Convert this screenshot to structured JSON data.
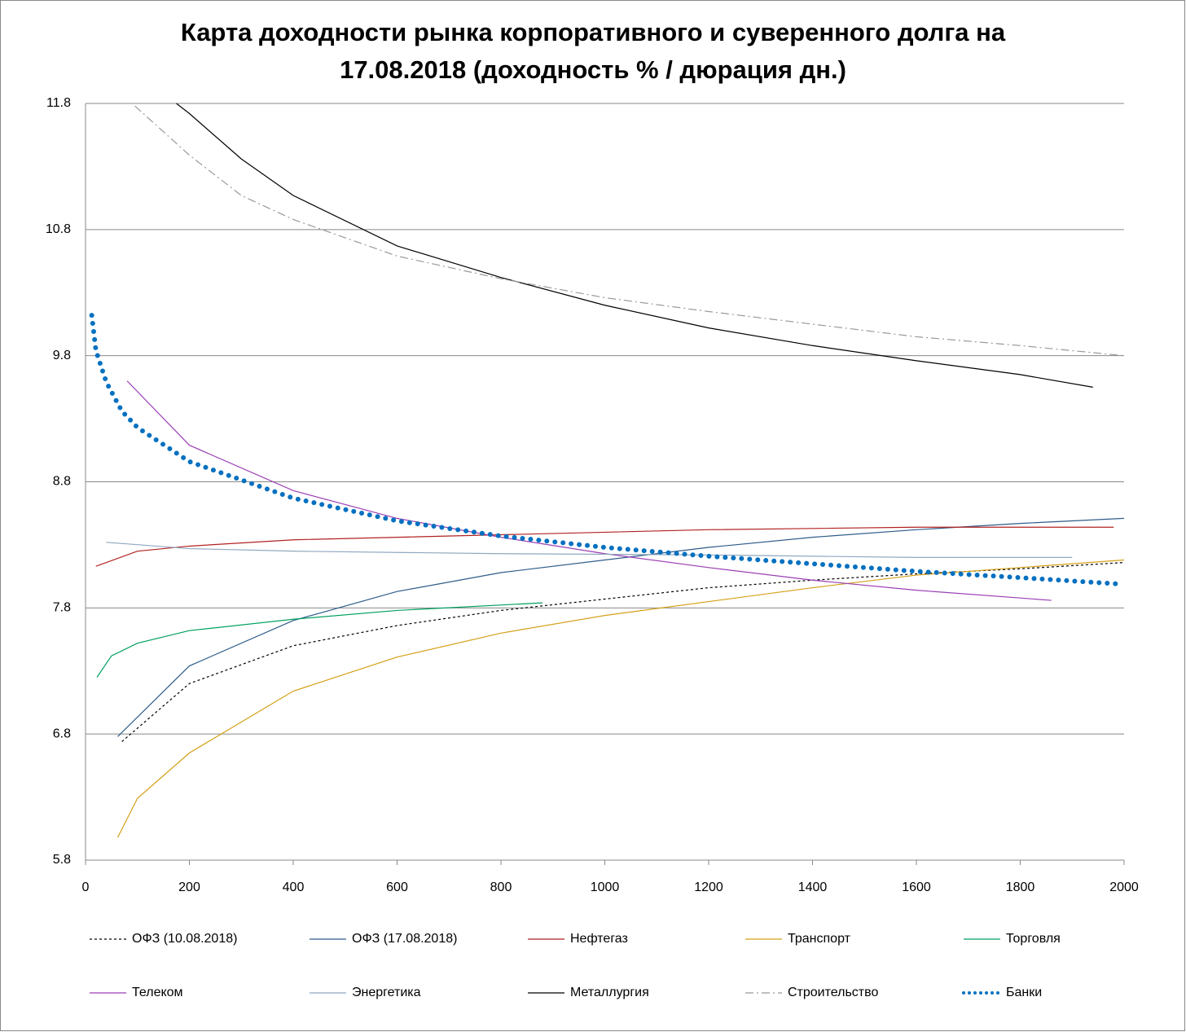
{
  "chart_data": {
    "type": "line",
    "title": [
      "Карта доходности рынка корпоративного и суверенного долга на",
      "17.08.2018 (доходность % / дюрация дн.)"
    ],
    "xlim": [
      0,
      2000
    ],
    "xticks": [
      0,
      200,
      400,
      600,
      800,
      1000,
      1200,
      1400,
      1600,
      1800,
      2000
    ],
    "ylim": [
      5.8,
      11.8
    ],
    "yticks": [
      5.8,
      6.8,
      7.8,
      8.8,
      9.8,
      10.8,
      11.8
    ],
    "grid": true,
    "series": [
      {
        "name": "ОФЗ (10.08.2018)",
        "color": "#000000",
        "style": "dashed",
        "x": [
          70,
          200,
          400,
          600,
          800,
          1000,
          1200,
          1400,
          1600,
          1800,
          2000
        ],
        "values": [
          6.74,
          7.2,
          7.5,
          7.66,
          7.78,
          7.87,
          7.96,
          8.02,
          8.07,
          8.11,
          8.16
        ]
      },
      {
        "name": "ОФЗ (17.08.2018)",
        "color": "#2e5c8a",
        "style": "solid",
        "x": [
          62,
          200,
          400,
          600,
          800,
          1000,
          1200,
          1400,
          1600,
          1800,
          2000
        ],
        "values": [
          6.78,
          7.34,
          7.7,
          7.93,
          8.08,
          8.18,
          8.28,
          8.36,
          8.42,
          8.47,
          8.51
        ]
      },
      {
        "name": "Нефтегаз",
        "color": "#b22222",
        "style": "solid",
        "x": [
          20,
          100,
          200,
          400,
          600,
          800,
          1000,
          1200,
          1400,
          1600,
          1800,
          1980
        ],
        "values": [
          8.13,
          8.25,
          8.29,
          8.34,
          8.36,
          8.38,
          8.4,
          8.42,
          8.43,
          8.44,
          8.44,
          8.44
        ]
      },
      {
        "name": "Транспорт",
        "color": "#d4a017",
        "style": "solid",
        "x": [
          62,
          100,
          200,
          400,
          600,
          800,
          1000,
          1200,
          1400,
          1600,
          1800,
          2000
        ],
        "values": [
          5.98,
          6.29,
          6.65,
          7.14,
          7.41,
          7.6,
          7.74,
          7.85,
          7.96,
          8.06,
          8.12,
          8.18
        ]
      },
      {
        "name": "Торговля",
        "color": "#00a060",
        "style": "solid",
        "x": [
          22,
          50,
          100,
          200,
          400,
          600,
          880
        ],
        "values": [
          7.25,
          7.42,
          7.52,
          7.62,
          7.71,
          7.78,
          7.84
        ]
      },
      {
        "name": "Телеком",
        "color": "#9b3fb5",
        "style": "solid",
        "x": [
          80,
          200,
          400,
          600,
          800,
          1000,
          1200,
          1400,
          1600,
          1860
        ],
        "values": [
          9.6,
          9.09,
          8.73,
          8.51,
          8.36,
          8.23,
          8.12,
          8.02,
          7.94,
          7.86
        ]
      },
      {
        "name": "Энергетика",
        "color": "#8fa8c0",
        "style": "solid",
        "x": [
          40,
          200,
          400,
          800,
          1200,
          1600,
          1900
        ],
        "values": [
          8.32,
          8.27,
          8.25,
          8.23,
          8.22,
          8.2,
          8.2
        ]
      },
      {
        "name": "Металлургия",
        "color": "#000000",
        "style": "solid",
        "x": [
          175,
          200,
          300,
          400,
          600,
          800,
          1000,
          1200,
          1400,
          1600,
          1800,
          1940
        ],
        "values": [
          11.8,
          11.72,
          11.36,
          11.07,
          10.67,
          10.42,
          10.2,
          10.02,
          9.88,
          9.76,
          9.65,
          9.55
        ]
      },
      {
        "name": "Строительство",
        "color": "#999999",
        "style": "dashdot",
        "x": [
          95,
          200,
          300,
          400,
          600,
          800,
          1000,
          1200,
          1400,
          1600,
          1800,
          2000
        ],
        "values": [
          11.78,
          11.39,
          11.07,
          10.88,
          10.59,
          10.41,
          10.26,
          10.15,
          10.05,
          9.95,
          9.88,
          9.8
        ]
      },
      {
        "name": "Банки",
        "color": "#0070c0",
        "style": "dotted",
        "x": [
          12,
          20,
          40,
          70,
          100,
          200,
          400,
          600,
          800,
          1000,
          1200,
          1400,
          1600,
          1800,
          1990
        ],
        "values": [
          10.12,
          9.84,
          9.59,
          9.36,
          9.23,
          8.96,
          8.67,
          8.49,
          8.37,
          8.28,
          8.21,
          8.15,
          8.09,
          8.04,
          7.99
        ]
      }
    ]
  }
}
